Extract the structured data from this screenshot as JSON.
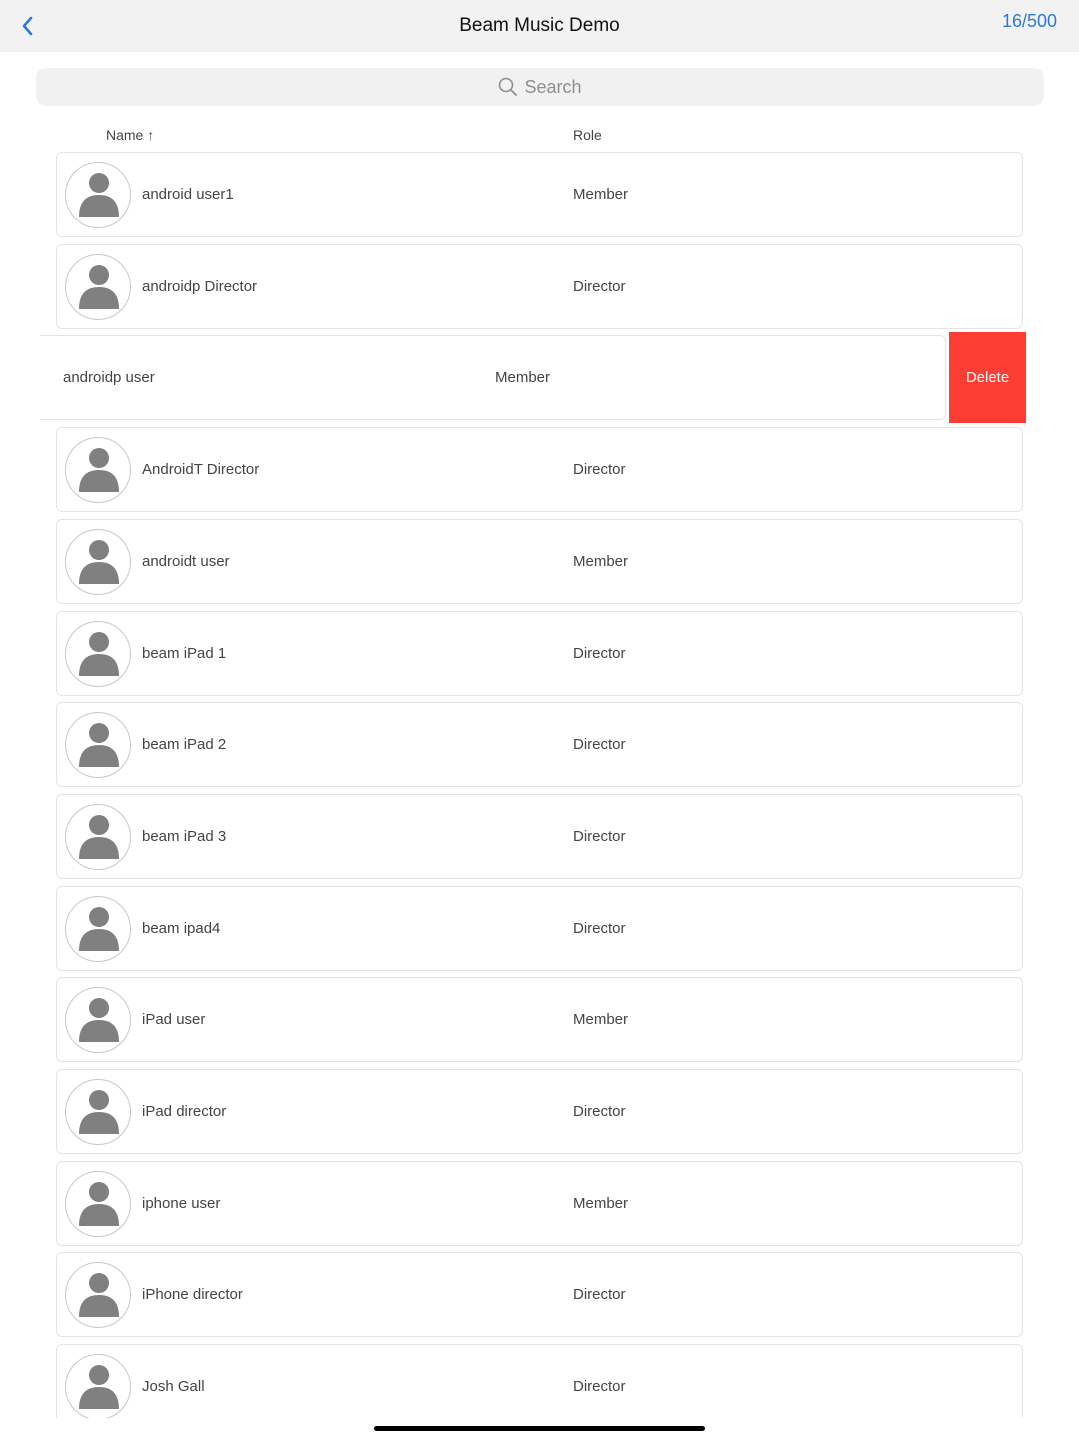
{
  "nav": {
    "title": "Beam Music Demo",
    "count": "16/500",
    "back_icon": "chevron-left-icon"
  },
  "search": {
    "placeholder": "Search"
  },
  "columns": {
    "name": "Name",
    "sort_indicator": "↑",
    "role": "Role"
  },
  "rows": [
    {
      "name": "android user1",
      "role": "Member"
    },
    {
      "name": "androidp Director",
      "role": "Director"
    },
    {
      "name": "androidp user",
      "role": "Member",
      "swiped": true
    },
    {
      "name": "AndroidT Director",
      "role": "Director"
    },
    {
      "name": "androidt user",
      "role": "Member"
    },
    {
      "name": "beam iPad 1",
      "role": "Director"
    },
    {
      "name": "beam iPad 2",
      "role": "Director"
    },
    {
      "name": "beam iPad 3",
      "role": "Director"
    },
    {
      "name": "beam ipad4",
      "role": "Director"
    },
    {
      "name": "iPad user",
      "role": "Member"
    },
    {
      "name": "iPad director",
      "role": "Director"
    },
    {
      "name": "iphone user",
      "role": "Member"
    },
    {
      "name": "iPhone director",
      "role": "Director"
    },
    {
      "name": "Josh Gall",
      "role": "Director"
    }
  ],
  "delete_label": "Delete",
  "colors": {
    "accent": "#2a7ad6",
    "delete": "#fc3d33"
  }
}
